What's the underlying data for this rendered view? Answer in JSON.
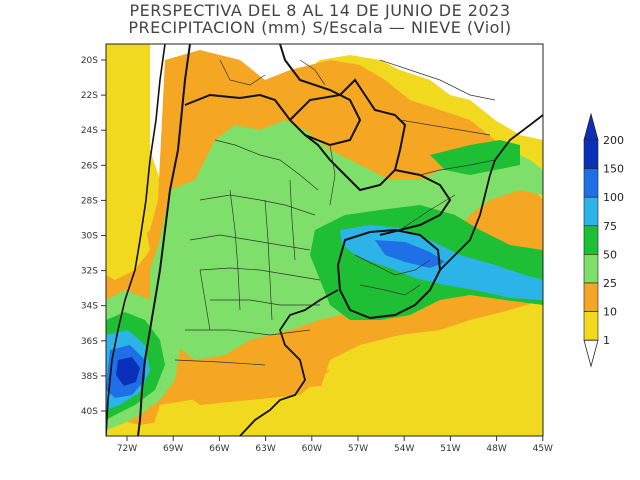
{
  "title": {
    "line1": "PERSPECTIVA DEL 8 AL 14 DE JUNIO DE 2023",
    "line2": "PRECIPITACION (mm) S/Escala — NIEVE (Viol)"
  },
  "axes": {
    "lat_labels": [
      "20S",
      "22S",
      "24S",
      "26S",
      "28S",
      "30S",
      "32S",
      "34S",
      "36S",
      "38S",
      "40S"
    ],
    "lon_labels": [
      "72W",
      "69W",
      "66W",
      "63W",
      "60W",
      "57W",
      "54W",
      "51W",
      "48W",
      "45W"
    ]
  },
  "legend": {
    "levels": [
      {
        "label": "200",
        "color": "#0a2fb8"
      },
      {
        "label": "150",
        "color": "#1f6fe6"
      },
      {
        "label": "100",
        "color": "#2cb4e8"
      },
      {
        "label": "75",
        "color": "#1fbf35"
      },
      {
        "label": "50",
        "color": "#7ee06a"
      },
      {
        "label": "25",
        "color": "#f5a623"
      },
      {
        "label": "10",
        "color": "#f1d91f"
      },
      {
        "label": "1",
        "color": "#ffffff"
      }
    ]
  },
  "colors": {
    "land_no_rain": "#ffffff",
    "light": "#f1d91f",
    "moderate": "#f5a623",
    "green_light": "#7ee06a",
    "green": "#1fbf35",
    "cyan": "#2cb4e8",
    "blue": "#1f6fe6",
    "dark_blue": "#0a2fb8"
  }
}
